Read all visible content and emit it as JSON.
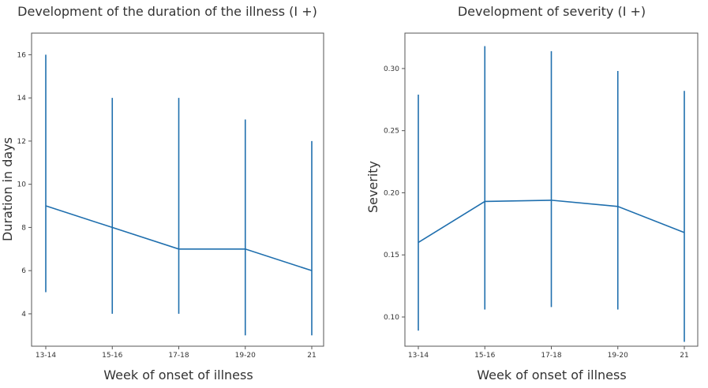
{
  "accent_color": "#1f6fae",
  "chart_data": [
    {
      "type": "line",
      "title": "Development of the duration of the illness (I +)",
      "xlabel": "Week of onset of illness",
      "ylabel": "Duration in days",
      "categories": [
        "13-14",
        "15-16",
        "17-18",
        "19-20",
        "21"
      ],
      "ylim": [
        2.5,
        17.0
      ],
      "yticks": [
        4,
        6,
        8,
        10,
        12,
        14,
        16
      ],
      "ytick_labels": [
        "4",
        "6",
        "8",
        "10",
        "12",
        "14",
        "16"
      ],
      "series": [
        {
          "values": [
            9,
            8,
            7,
            7,
            6
          ],
          "lower": [
            5,
            4,
            4,
            3,
            3
          ],
          "upper": [
            16,
            14,
            14,
            13,
            12
          ]
        }
      ],
      "grid": false
    },
    {
      "type": "line",
      "title": "Development of severity (I +)",
      "xlabel": "Week of onset of illness",
      "ylabel": "Severity",
      "categories": [
        "13-14",
        "15-16",
        "17-18",
        "19-20",
        "21"
      ],
      "ylim": [
        0.0765,
        0.3285
      ],
      "yticks": [
        0.1,
        0.15,
        0.2,
        0.25,
        0.3
      ],
      "ytick_labels": [
        "0.10",
        "0.15",
        "0.20",
        "0.25",
        "0.30"
      ],
      "series": [
        {
          "values": [
            0.16,
            0.193,
            0.194,
            0.189,
            0.168
          ],
          "lower": [
            0.089,
            0.106,
            0.108,
            0.106,
            0.08
          ],
          "upper": [
            0.279,
            0.318,
            0.314,
            0.298,
            0.282
          ]
        }
      ],
      "grid": false
    }
  ]
}
